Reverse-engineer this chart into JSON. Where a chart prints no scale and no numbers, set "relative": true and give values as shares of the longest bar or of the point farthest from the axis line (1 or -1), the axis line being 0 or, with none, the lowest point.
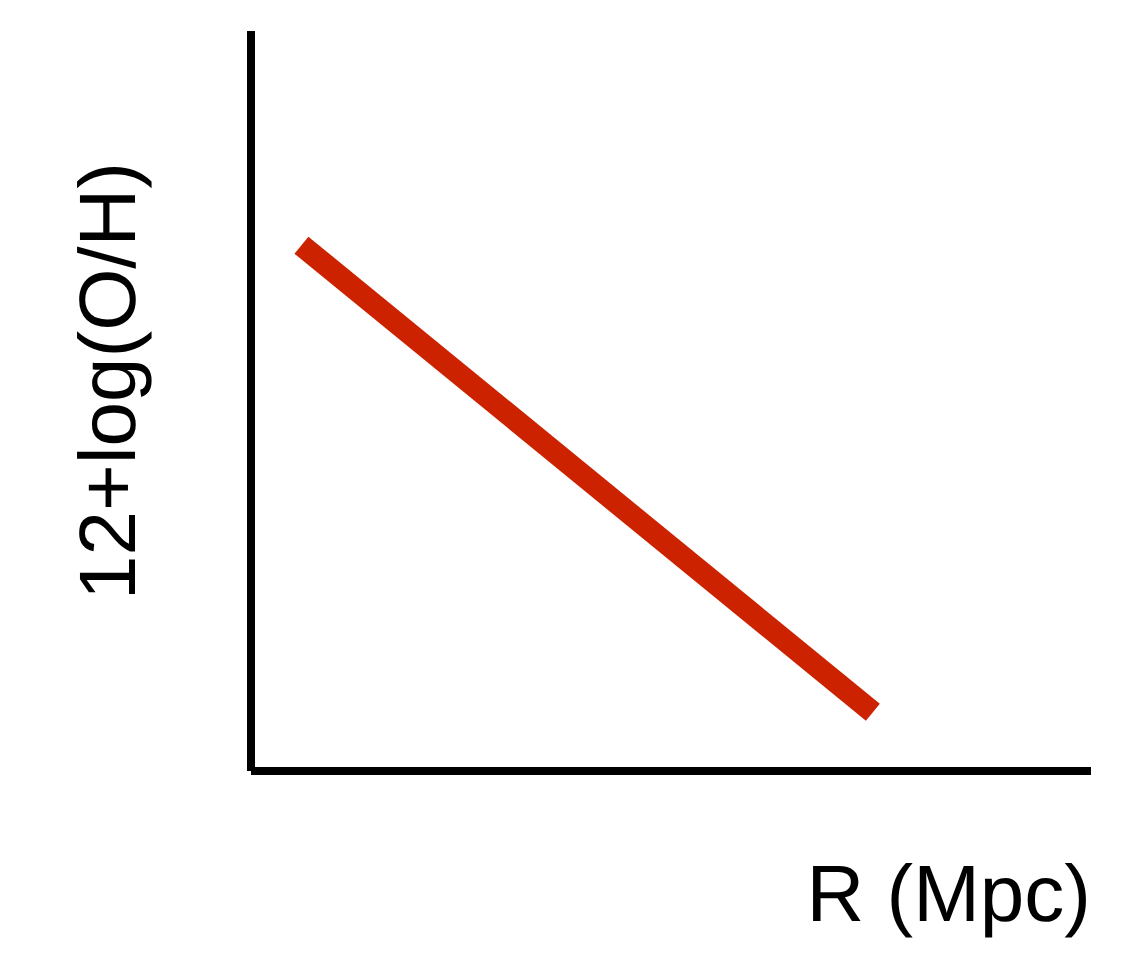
{
  "chart_data": {
    "type": "line",
    "relative": true,
    "xlabel": "R (Mpc)",
    "ylabel": "12+log(O/H)",
    "categories": [
      null,
      null
    ],
    "series": [
      {
        "color": "#cc2200",
        "values": [
          1,
          0.11
        ]
      }
    ],
    "grid": false,
    "tick_labels": false,
    "marker": "none",
    "line_style": "solid"
  }
}
